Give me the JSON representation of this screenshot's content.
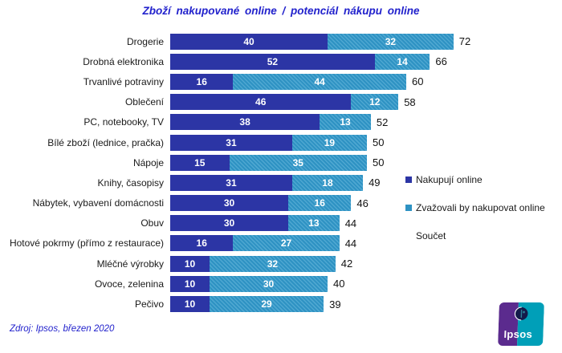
{
  "title": "Zboží nakupované online / potenciál nákupu online",
  "source": "Zdroj: Ipsos, březen 2020",
  "legend": {
    "series1": "Nakupují online",
    "series2": "Zvažovali by nakupovat online",
    "total": "Součet"
  },
  "colors": {
    "series1": "#2C35A5",
    "series2_base": "#2E92C3",
    "series2_stripe": "#4EA7D1",
    "title_text": "#2222CC",
    "source_text": "#2222CC",
    "total_text": "#111111",
    "logo_purple": "#5B2B8E",
    "logo_teal": "#009FB8"
  },
  "logo": {
    "text": "Ipsos"
  },
  "chart_data": {
    "type": "bar",
    "orientation": "horizontal",
    "stacked": true,
    "title": "Zboží nakupované online / potenciál nákupu online",
    "xlabel": "",
    "ylabel": "",
    "xlim": [
      0,
      80
    ],
    "grid": false,
    "legend_position": "right",
    "categories": [
      "Drogerie",
      "Drobná elektronika",
      "Trvanlivé potraviny",
      "Oblečení",
      "PC, notebooky, TV",
      "Bílé zboží (lednice, pračka)",
      "Nápoje",
      "Knihy, časopisy",
      "Nábytek, vybavení domácnosti",
      "Obuv",
      "Hotové pokrmy (přímo z restaurace)",
      "Mléčné výrobky",
      "Ovoce, zelenina",
      "Pečivo"
    ],
    "series": [
      {
        "name": "Nakupují online",
        "values": [
          40,
          52,
          16,
          46,
          38,
          31,
          15,
          31,
          30,
          30,
          16,
          10,
          10,
          10
        ]
      },
      {
        "name": "Zvažovali by nakupovat online",
        "values": [
          32,
          14,
          44,
          12,
          13,
          19,
          35,
          18,
          16,
          13,
          27,
          32,
          30,
          29
        ]
      }
    ],
    "totals": [
      72,
      66,
      60,
      58,
      52,
      50,
      50,
      49,
      46,
      44,
      44,
      42,
      40,
      39
    ]
  }
}
